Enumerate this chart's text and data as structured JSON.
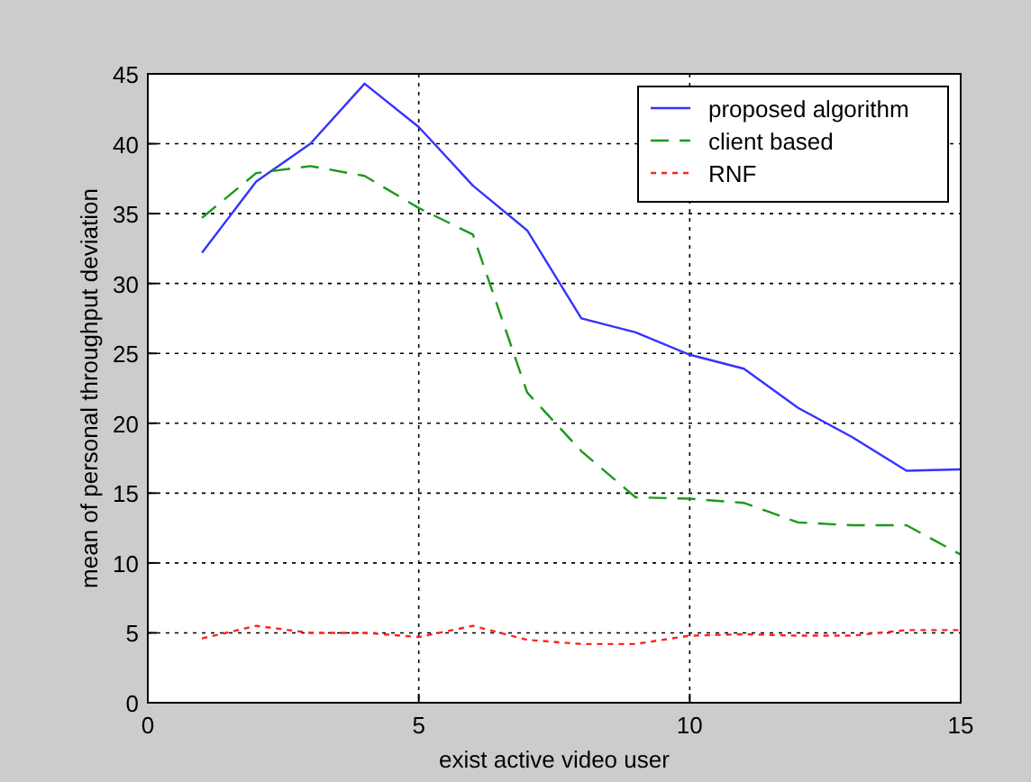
{
  "chart_data": {
    "type": "line",
    "xlabel": "exist active video user",
    "ylabel": "mean of personal throughput deviation",
    "x": [
      1,
      2,
      3,
      4,
      5,
      6,
      7,
      8,
      9,
      10,
      11,
      12,
      13,
      14,
      15
    ],
    "series": [
      {
        "name": "proposed algorithm",
        "color": "#3333ff",
        "line_style": "solid",
        "values": [
          32.2,
          37.3,
          40,
          44.3,
          41.2,
          37,
          33.8,
          27.5,
          26.5,
          24.9,
          23.9,
          21.1,
          19,
          16.6,
          16.7
        ]
      },
      {
        "name": "client based",
        "color": "#1a9a1a",
        "line_style": "dashed",
        "values": [
          34.7,
          37.9,
          38.4,
          37.7,
          35.4,
          33.5,
          22.2,
          18,
          14.7,
          14.6,
          14.3,
          12.9,
          12.7,
          12.7,
          10.6
        ]
      },
      {
        "name": "RNF",
        "color": "#ff2222",
        "line_style": "dotted",
        "values": [
          4.6,
          5.5,
          5,
          5,
          4.7,
          5.5,
          4.5,
          4.2,
          4.2,
          4.8,
          4.9,
          4.8,
          4.8,
          5.2,
          5.2
        ]
      }
    ],
    "xlim": [
      0,
      15
    ],
    "xticks": [
      0,
      5,
      10,
      15
    ],
    "ylim": [
      0,
      45
    ],
    "yticks": [
      0,
      5,
      10,
      15,
      20,
      25,
      30,
      35,
      40,
      45
    ],
    "grid": true,
    "legend": "top right",
    "marker": "none"
  }
}
